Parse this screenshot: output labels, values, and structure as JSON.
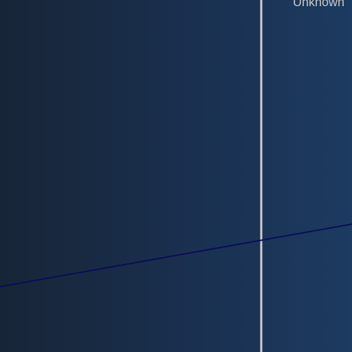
{
  "label": {
    "text": "Unknown"
  },
  "colors": {
    "background_left": "#172537",
    "background_right": "#1c3b60",
    "vertical_line": "#d0d0d0",
    "diagonal_line": "#0a0c5a",
    "label_text": "#c7c7c7"
  }
}
